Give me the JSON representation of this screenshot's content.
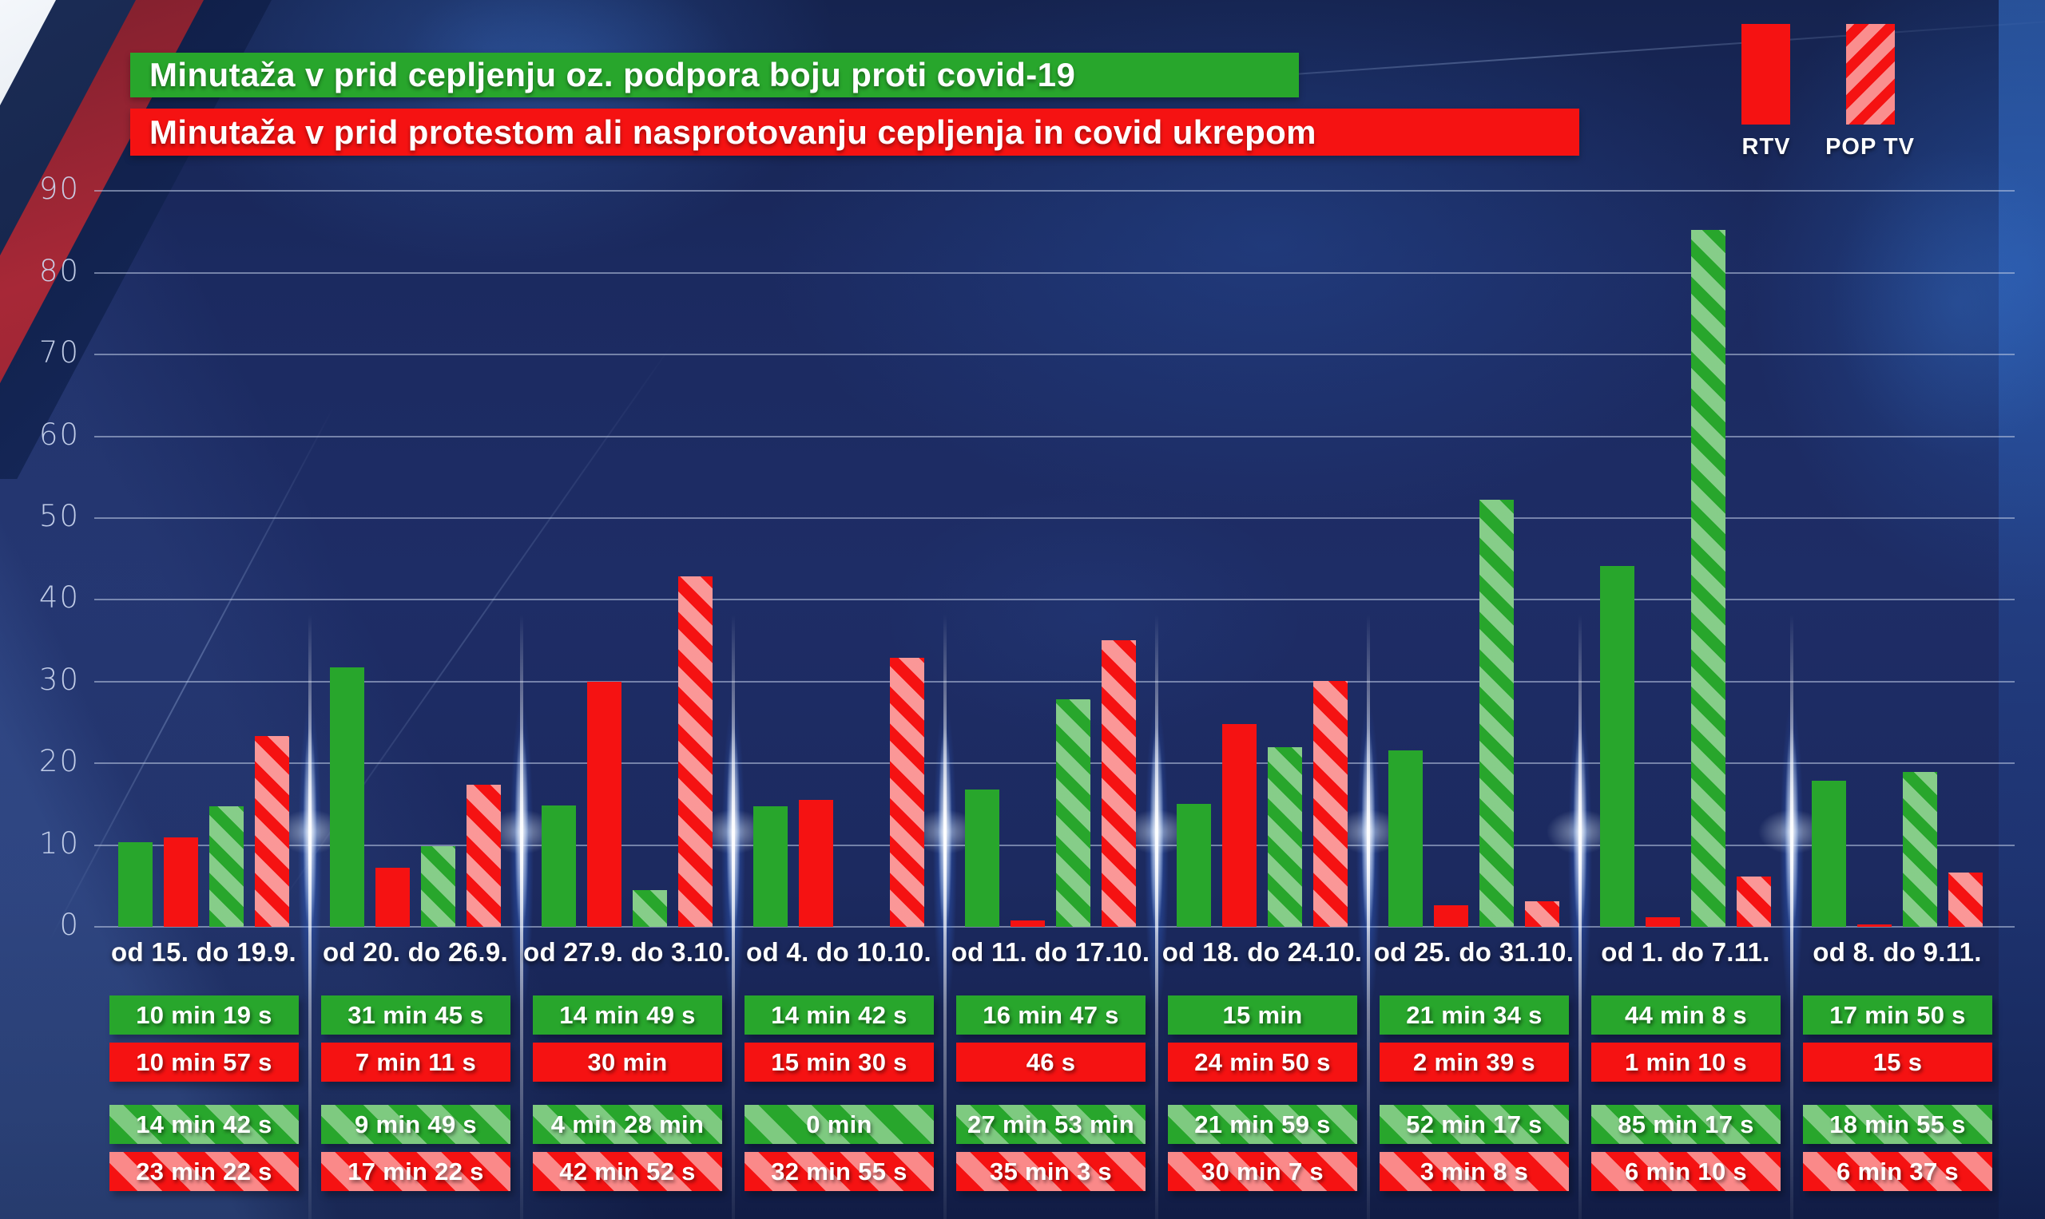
{
  "titles": {
    "pro_vaccine": "Minutaža v prid cepljenju oz. podpora boju proti covid-19",
    "protest": "Minutaža v prid protestom ali nasprotovanju cepljenja in covid ukrepom"
  },
  "legend": {
    "rtv": "RTV",
    "poptv": "POP TV"
  },
  "colors": {
    "green": "#28a62c",
    "red": "#f51212",
    "background_navy": "#1c2a60",
    "gridline": "rgba(190,203,228,0.55)",
    "title_text": "#ffffff"
  },
  "chart_data": {
    "type": "bar",
    "title": "Minutaža v prid cepljenju oz. podpora boju proti covid-19 / Minutaža v prid protestom ali nasprotovanju cepljenja in covid ukrepom",
    "xlabel": "",
    "ylabel": "",
    "ylim": [
      0,
      90
    ],
    "y_ticks": [
      0,
      10,
      20,
      30,
      40,
      50,
      60,
      70,
      80,
      90
    ],
    "grid": true,
    "legend_position": "top-right",
    "categories": [
      "od 15. do 19.9.",
      "od 20. do 26.9.",
      "od 27.9. do 3.10.",
      "od 4. do 10.10.",
      "od 11. do 17.10.",
      "od 18. do 24.10.",
      "od 25. do 31.10.",
      "od 1. do 7.11.",
      "od 8. do 9.11."
    ],
    "series": [
      {
        "name": "RTV – v prid cepljenju",
        "style": "green",
        "values": [
          10.32,
          31.75,
          14.82,
          14.7,
          16.78,
          15.0,
          21.57,
          44.13,
          17.83
        ],
        "labels": [
          "10 min 19 s",
          "31 min 45 s",
          "14 min 49 s",
          "14 min 42 s",
          "16 min 47 s",
          "15 min",
          "21 min 34 s",
          "44 min 8 s",
          "17 min 50 s"
        ]
      },
      {
        "name": "RTV – v prid protestom",
        "style": "red",
        "values": [
          10.95,
          7.18,
          30.0,
          15.5,
          0.77,
          24.83,
          2.65,
          1.17,
          0.25
        ],
        "labels": [
          "10 min 57 s",
          "7 min 11 s",
          "30 min",
          "15 min 30 s",
          "46 s",
          "24 min 50 s",
          "2 min 39 s",
          "1 min 10 s",
          "15 s"
        ]
      },
      {
        "name": "POP TV – v prid cepljenju",
        "style": "green-striped",
        "values": [
          14.7,
          9.82,
          4.47,
          0.0,
          27.88,
          21.98,
          52.28,
          85.28,
          18.92
        ],
        "labels": [
          "14 min 42 s",
          "9 min 49 s",
          "4 min 28 min",
          "0 min",
          "27 min 53 min",
          "21 min 59 s",
          "52 min 17 s",
          "85 min 17 s",
          "18 min 55 s"
        ]
      },
      {
        "name": "POP TV – v prid protestom",
        "style": "red-striped",
        "values": [
          23.37,
          17.37,
          42.87,
          32.92,
          35.05,
          30.12,
          3.13,
          6.17,
          6.62
        ],
        "labels": [
          "23 min 22 s",
          "17 min 22 s",
          "42 min 52 s",
          "32 min 55 s",
          "35 min 3 s",
          "30 min 7 s",
          "3 min 8 s",
          "6 min 10 s",
          "6 min 37 s"
        ]
      }
    ]
  }
}
